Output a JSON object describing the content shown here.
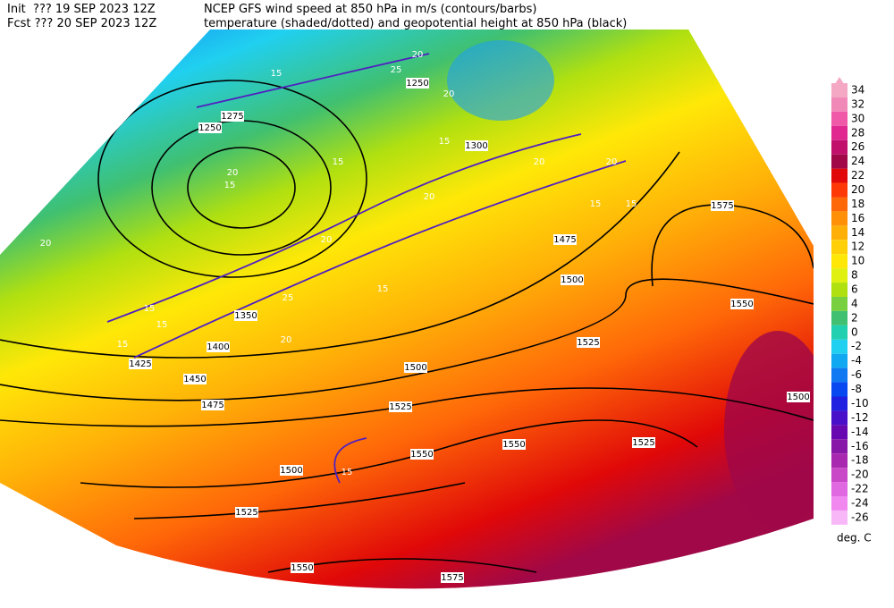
{
  "header": {
    "init": "Init  ??? 19 SEP 2023 12Z",
    "fcst": "Fcst ??? 20 SEP 2023 12Z",
    "line1": "NCEP GFS wind speed at 850 hPa in m/s (contours/barbs)",
    "line2": "temperature (shaded/dotted) and geopotential height at 850 hPa (black)"
  },
  "colorbar": {
    "ticks": [
      34,
      32,
      30,
      28,
      26,
      24,
      22,
      20,
      18,
      16,
      14,
      12,
      10,
      8,
      6,
      4,
      2,
      0,
      -2,
      -4,
      -6,
      -8,
      -10,
      -12,
      -14,
      -16,
      -18,
      -20,
      -22,
      -24,
      -26
    ],
    "colors": [
      "#f4a8c4",
      "#f088b8",
      "#f058a8",
      "#e02890",
      "#c0106c",
      "#a00848",
      "#e00808",
      "#ff3808",
      "#ff6808",
      "#ff9008",
      "#ffb008",
      "#ffd008",
      "#ffe808",
      "#e0f010",
      "#b0e010",
      "#78d040",
      "#40c070",
      "#20d0b0",
      "#20d0f0",
      "#10a8f0",
      "#1078f0",
      "#0848f0",
      "#2020e0",
      "#4810c8",
      "#6808b0",
      "#8818a8",
      "#a828b0",
      "#c848c8",
      "#e068e0",
      "#f088f0",
      "#f8b8f8"
    ],
    "unit": "deg. C"
  },
  "map": {
    "height_labels": [
      "1275",
      "1250",
      "1300",
      "1250",
      "1475",
      "1500",
      "1575",
      "1550",
      "1525",
      "1500",
      "1450",
      "1475",
      "1525",
      "1525",
      "1500",
      "1550",
      "1550",
      "1500",
      "1525",
      "1550",
      "1575",
      "1425",
      "1400",
      "1350"
    ],
    "wind_labels": [
      "20",
      "25",
      "15",
      "20",
      "15",
      "20",
      "20",
      "15",
      "20",
      "15",
      "20",
      "15",
      "15",
      "15",
      "20",
      "15",
      "15",
      "15",
      "20",
      "15",
      "25",
      "20"
    ]
  }
}
